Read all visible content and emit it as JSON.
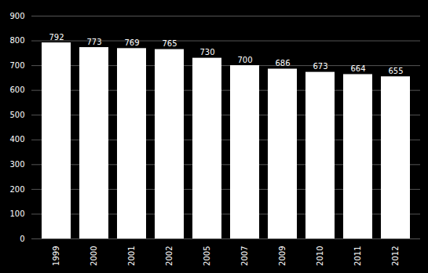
{
  "chart_data": {
    "type": "bar",
    "categories": [
      "1999",
      "2000",
      "2001",
      "2002",
      "2005",
      "2007",
      "2009",
      "2010",
      "2011",
      "2012"
    ],
    "values": [
      792,
      773,
      769,
      765,
      730,
      700,
      686,
      673,
      664,
      655
    ],
    "color": "#ffffff",
    "ylim": [
      0,
      900
    ],
    "yticks": [
      0,
      100,
      200,
      300,
      400,
      500,
      600,
      700,
      800,
      900
    ],
    "grid": true,
    "data_labels": true
  }
}
